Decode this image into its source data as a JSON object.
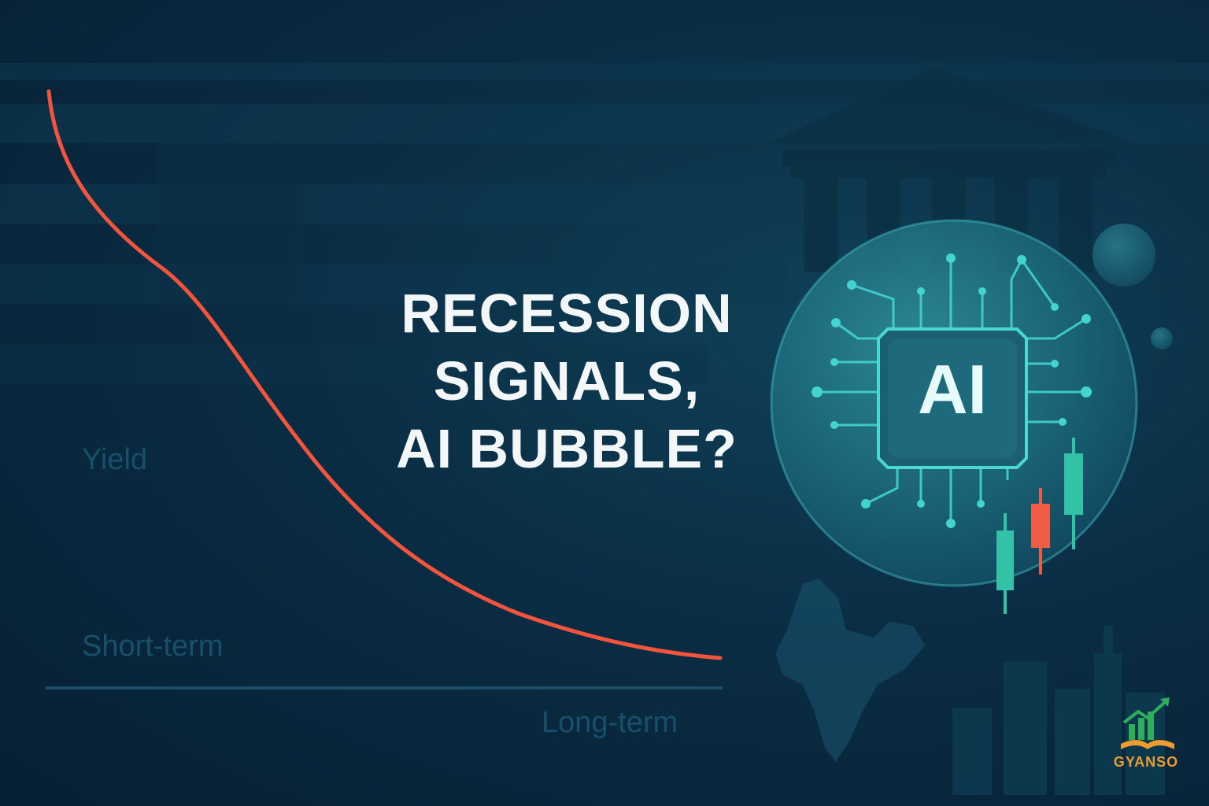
{
  "headline": {
    "line1": "RECESSION",
    "line2": "SIGNALS,",
    "line3": "AI BUBBLE?"
  },
  "yield_chart": {
    "y_label": "Yield",
    "short_label": "Short-term",
    "long_label": "Long-term",
    "curve_color": "#f2543e"
  },
  "bubble": {
    "chip_text": "AI",
    "accent": "#43d3d0"
  },
  "candles": [
    {
      "color": "#32c2a8",
      "direction": "up"
    },
    {
      "color": "#ef5c45",
      "direction": "down"
    },
    {
      "color": "#32c2a8",
      "direction": "up"
    }
  ],
  "brand": {
    "name": "GYANSO",
    "logo_icon": "growth-chart-book-icon"
  },
  "background_icons": [
    "bank-building-icon",
    "flag-stripes-icon",
    "india-map-icon",
    "city-skyline-icon"
  ]
}
